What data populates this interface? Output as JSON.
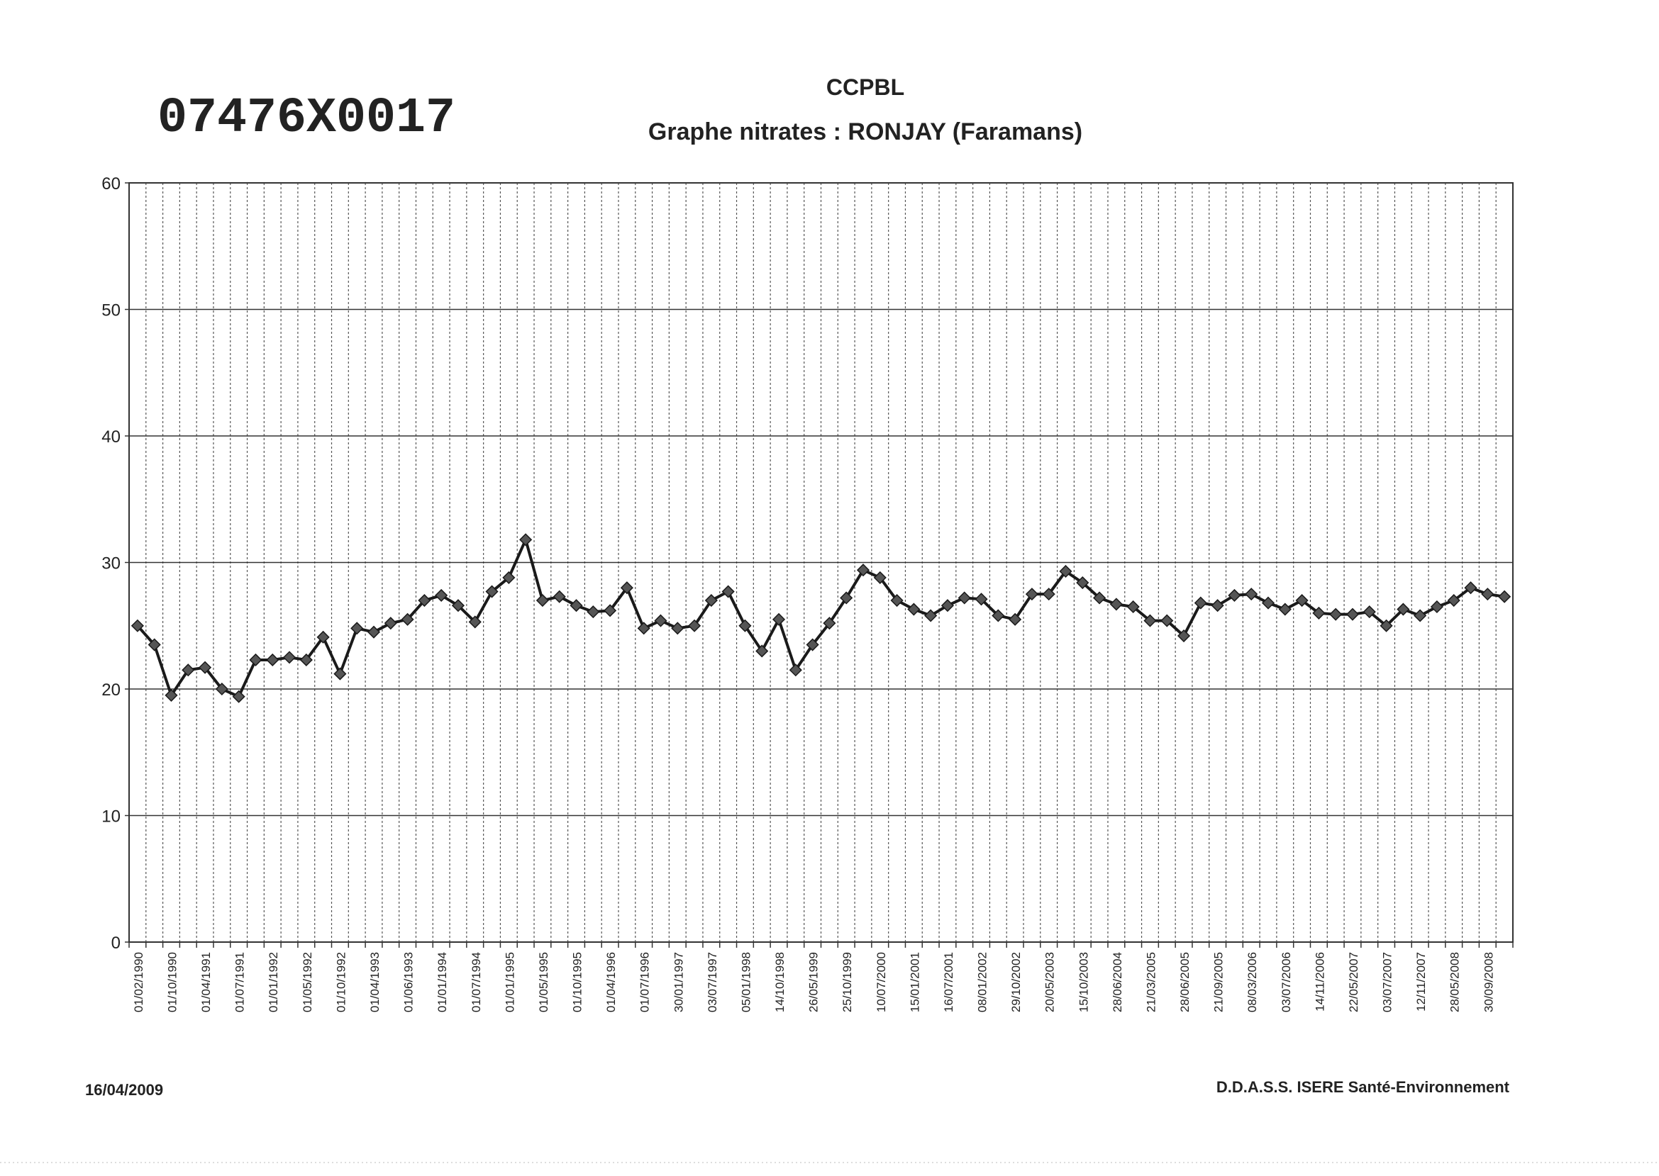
{
  "header": {
    "code": "07476X0017"
  },
  "chart_data": {
    "type": "line",
    "title": "CCPBL",
    "subtitle": "Graphe nitrates : RONJAY (Faramans)",
    "categories": [
      "01/02/1990",
      null,
      "01/10/1990",
      null,
      "01/04/1991",
      null,
      "01/07/1991",
      null,
      "01/01/1992",
      null,
      "01/05/1992",
      null,
      "01/10/1992",
      null,
      "01/04/1993",
      null,
      "01/06/1993",
      null,
      "01/01/1994",
      null,
      "01/07/1994",
      null,
      "01/01/1995",
      null,
      "01/05/1995",
      null,
      "01/10/1995",
      null,
      "01/04/1996",
      null,
      "01/07/1996",
      null,
      "30/01/1997",
      null,
      "03/07/1997",
      null,
      "05/01/1998",
      null,
      "14/10/1998",
      null,
      "26/05/1999",
      null,
      "25/10/1999",
      null,
      "10/07/2000",
      null,
      "15/01/2001",
      null,
      "16/07/2001",
      null,
      "08/01/2002",
      null,
      "29/10/2002",
      null,
      "20/05/2003",
      null,
      "15/10/2003",
      null,
      "28/06/2004",
      null,
      "21/03/2005",
      null,
      "28/06/2005",
      null,
      "21/09/2005",
      null,
      "08/03/2006",
      null,
      "03/07/2006",
      null,
      "14/11/2006",
      null,
      "22/05/2007",
      null,
      "03/07/2007",
      null,
      "12/11/2007",
      null,
      "28/05/2008",
      null,
      "30/09/2008",
      null
    ],
    "series": [
      {
        "name": "nitrates",
        "color": "#1a1a1a",
        "values": [
          25.0,
          23.5,
          19.5,
          21.5,
          21.7,
          20.0,
          19.4,
          22.3,
          22.3,
          22.5,
          22.3,
          24.1,
          21.2,
          24.8,
          24.5,
          25.2,
          25.5,
          27.0,
          27.4,
          26.6,
          25.3,
          27.7,
          28.8,
          31.8,
          27.0,
          27.3,
          26.6,
          26.1,
          26.2,
          28.0,
          24.8,
          25.4,
          24.8,
          25.0,
          27.0,
          27.7,
          25.0,
          23.0,
          25.5,
          21.5,
          23.5,
          25.2,
          27.2,
          29.4,
          28.8,
          27.0,
          26.3,
          25.8,
          26.6,
          27.2,
          27.1,
          25.8,
          25.5,
          27.5,
          27.5,
          29.3,
          28.4,
          27.2,
          26.7,
          26.5,
          25.4,
          25.4,
          24.2,
          26.8,
          26.6,
          27.4,
          27.5,
          26.8,
          26.3,
          27.0,
          26.0,
          25.9,
          25.9,
          26.1,
          25.0,
          26.3,
          25.8,
          26.5,
          27.0,
          28.0,
          27.5,
          27.3
        ]
      }
    ],
    "ylim": [
      0,
      60
    ],
    "yticks": [
      0,
      10,
      20,
      30,
      40,
      50,
      60
    ],
    "grid": true
  },
  "footer": {
    "date": "16/04/2009",
    "source": "D.D.A.S.S. ISERE Santé-Environnement"
  }
}
